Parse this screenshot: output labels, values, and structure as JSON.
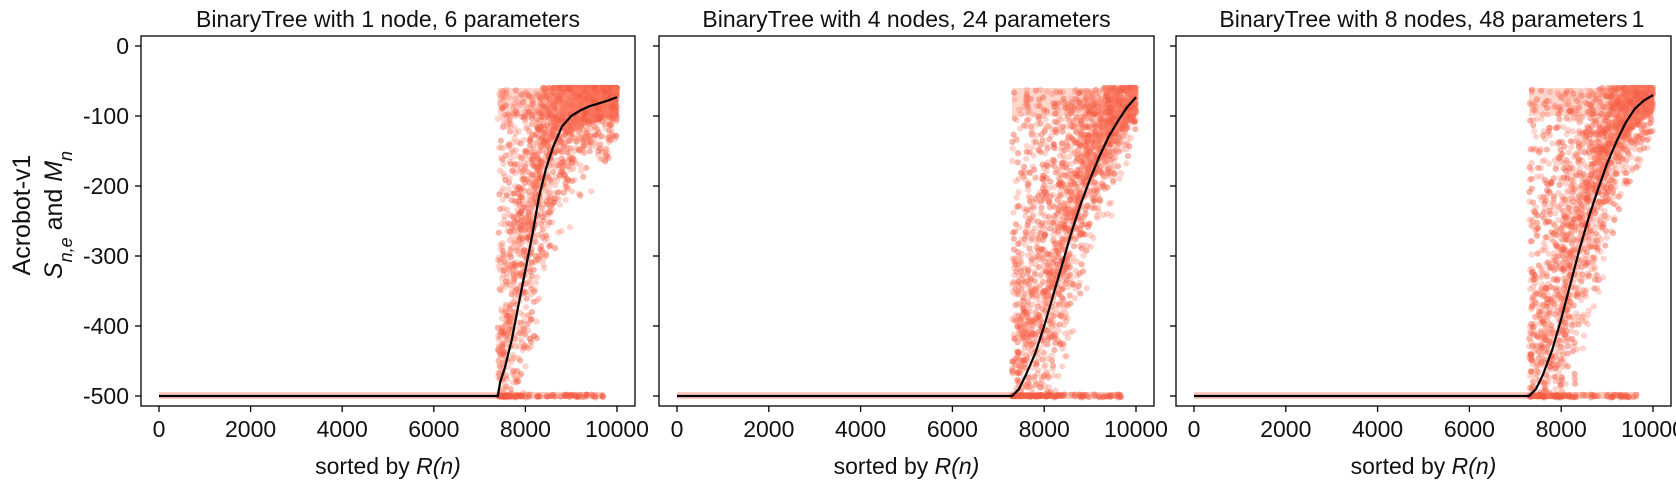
{
  "figure": {
    "corner_mark": "1",
    "row_label": "Acrobot-v1",
    "ylabel_main": "S",
    "ylabel_sub": "n,e",
    "ylabel_mid": " and ",
    "ylabel_main2": "M",
    "ylabel_sub2": "n"
  },
  "colors": {
    "scatter": "#fb7a61",
    "line": "#000000",
    "background": "#ffffff"
  },
  "chart_data": [
    {
      "type": "scatter",
      "title": "BinaryTree with 1 node, 6 parameters",
      "xlabel_prefix": "sorted by ",
      "xlabel_var": "R(n)",
      "xlim": [
        0,
        10000
      ],
      "ylim": [
        -500,
        0
      ],
      "xticks": [
        0,
        2000,
        4000,
        6000,
        8000,
        10000
      ],
      "yticks": [
        0,
        -100,
        -200,
        -300,
        -400,
        -500
      ],
      "transition_x": 7400,
      "series": [
        {
          "name": "",
          "kind": "line",
          "x": [
            0,
            7400,
            7450,
            7550,
            7700,
            7850,
            8000,
            8150,
            8300,
            8450,
            8600,
            8800,
            9000,
            9200,
            9400,
            9600,
            9800,
            10000
          ],
          "y": [
            -500,
            -500,
            -480,
            -460,
            -420,
            -370,
            -320,
            -270,
            -215,
            -175,
            -145,
            -115,
            -100,
            -92,
            -86,
            -82,
            -78,
            -73
          ]
        }
      ]
    },
    {
      "type": "scatter",
      "title": "BinaryTree with 4 nodes, 24 parameters",
      "xlabel_prefix": "sorted by ",
      "xlabel_var": "R(n)",
      "xlim": [
        0,
        10000
      ],
      "ylim": [
        -500,
        0
      ],
      "xticks": [
        0,
        2000,
        4000,
        6000,
        8000,
        10000
      ],
      "yticks": [
        0,
        -100,
        -200,
        -300,
        -400,
        -500
      ],
      "transition_x": 7300,
      "series": [
        {
          "name": "",
          "kind": "line",
          "x": [
            0,
            7300,
            7450,
            7600,
            7800,
            8000,
            8200,
            8400,
            8600,
            8800,
            9000,
            9200,
            9400,
            9600,
            9800,
            10000
          ],
          "y": [
            -500,
            -500,
            -490,
            -470,
            -440,
            -400,
            -355,
            -310,
            -265,
            -225,
            -190,
            -158,
            -130,
            -108,
            -88,
            -73
          ]
        }
      ]
    },
    {
      "type": "scatter",
      "title": "BinaryTree with 8 nodes, 48 parameters",
      "xlabel_prefix": "sorted by ",
      "xlabel_var": "R(n)",
      "xlim": [
        0,
        10000
      ],
      "ylim": [
        -500,
        0
      ],
      "xticks": [
        0,
        2000,
        4000,
        6000,
        8000,
        10000
      ],
      "yticks": [
        0,
        -100,
        -200,
        -300,
        -400,
        -500
      ],
      "transition_x": 7300,
      "series": [
        {
          "name": "",
          "kind": "line",
          "x": [
            0,
            7300,
            7450,
            7600,
            7800,
            8000,
            8200,
            8400,
            8600,
            8800,
            9000,
            9200,
            9400,
            9600,
            9800,
            10000
          ],
          "y": [
            -500,
            -500,
            -490,
            -470,
            -435,
            -390,
            -340,
            -290,
            -245,
            -205,
            -168,
            -137,
            -110,
            -90,
            -78,
            -70
          ]
        }
      ]
    }
  ]
}
